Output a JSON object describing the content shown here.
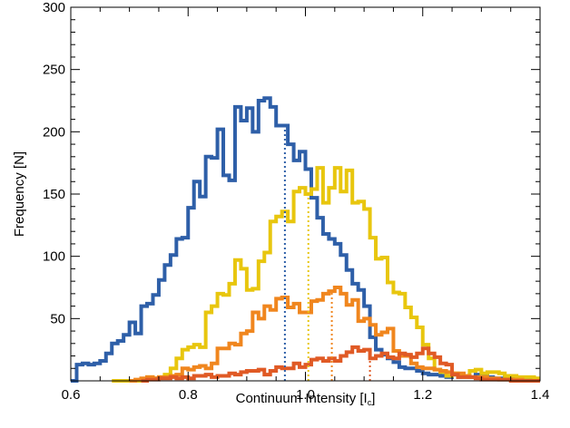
{
  "chart_data": {
    "type": "histogram-step",
    "xlabel": "Continuum Intensity [I",
    "xlabel_subscript": "c",
    "xlabel_suffix": "]",
    "ylabel": "Frequency [N]",
    "xlim": [
      0.6,
      1.4
    ],
    "ylim": [
      0,
      300
    ],
    "xticks": [
      "0.6",
      "0.8",
      "1.0",
      "1.2",
      "1.4"
    ],
    "yticks": [
      "50",
      "100",
      "150",
      "200",
      "250",
      "300"
    ],
    "grid": false,
    "bin_width": 0.01,
    "series": [
      {
        "color": "#2e5fa8",
        "bins_start": 0.6,
        "values": [
          0,
          13,
          14,
          13,
          14,
          16,
          22,
          30,
          32,
          37,
          47,
          38,
          60,
          62,
          69,
          81,
          93,
          101,
          114,
          115,
          139,
          160,
          148,
          180,
          179,
          202,
          165,
          161,
          220,
          209,
          219,
          200,
          225,
          227,
          220,
          205,
          205,
          190,
          177,
          184,
          170,
          147,
          131,
          118,
          114,
          110,
          101,
          89,
          78,
          73,
          60,
          35,
          25,
          21,
          18,
          15,
          11,
          10,
          10,
          8,
          6,
          5,
          5,
          4,
          3,
          5,
          3,
          3,
          3,
          5,
          5,
          3,
          2,
          2,
          4,
          2,
          2,
          1,
          1,
          1
        ],
        "mean": 0.965
      },
      {
        "color": "#e8c60e",
        "bins_start": 0.67,
        "values": [
          0,
          0,
          0,
          0,
          0,
          0,
          3,
          2,
          3,
          5,
          10,
          18,
          25,
          27,
          29,
          27,
          55,
          60,
          70,
          69,
          78,
          97,
          90,
          73,
          74,
          96,
          103,
          128,
          132,
          136,
          128,
          152,
          155,
          150,
          154,
          171,
          143,
          155,
          171,
          152,
          169,
          143,
          144,
          138,
          115,
          98,
          99,
          79,
          71,
          70,
          59,
          51,
          43,
          29,
          18,
          9,
          7,
          4,
          6,
          4,
          3,
          8,
          9,
          6,
          7,
          7,
          6,
          4,
          4,
          3,
          3,
          3,
          2
        ],
        "mean": 1.005
      },
      {
        "color": "#f0861e",
        "bins_start": 0.7,
        "values": [
          0,
          1,
          2,
          3,
          2,
          3,
          3,
          4,
          5,
          10,
          9,
          11,
          12,
          10,
          14,
          26,
          26,
          30,
          29,
          38,
          40,
          55,
          50,
          60,
          57,
          66,
          67,
          59,
          62,
          55,
          55,
          64,
          65,
          70,
          72,
          75,
          70,
          61,
          65,
          48,
          50,
          45,
          37,
          39,
          42,
          24,
          20,
          20,
          14,
          11,
          10,
          10,
          9,
          8,
          7,
          6,
          6,
          4,
          3,
          3,
          3,
          2,
          2,
          1,
          1,
          1,
          1,
          0,
          0,
          0
        ],
        "mean": 1.045
      },
      {
        "color": "#e05a25",
        "bins_start": 0.72,
        "values": [
          0,
          1,
          1,
          2,
          2,
          3,
          2,
          3,
          2,
          4,
          4,
          5,
          3,
          4,
          4,
          6,
          5,
          7,
          8,
          8,
          9,
          5,
          8,
          11,
          10,
          10,
          14,
          11,
          13,
          17,
          18,
          16,
          18,
          16,
          20,
          23,
          27,
          24,
          25,
          18,
          20,
          22,
          19,
          18,
          22,
          21,
          19,
          22,
          26,
          22,
          19,
          14,
          13,
          5,
          3,
          3,
          3,
          2,
          1,
          1,
          1,
          1,
          1,
          0,
          0,
          0,
          0,
          0
        ],
        "mean": 1.11
      }
    ]
  }
}
